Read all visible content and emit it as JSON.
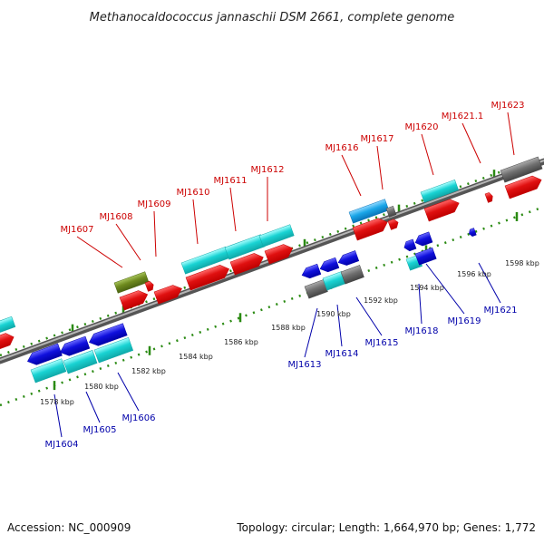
{
  "title": "Methanocaldococcus jannaschii DSM 2661, complete genome",
  "footer": {
    "accession": "Accession: NC_000909",
    "summary": "Topology: circular; Length: 1,664,970 bp; Genes: 1,772"
  },
  "colors": {
    "red": "#e01010",
    "blue": "#1010dd",
    "cyan": "#19d3d3",
    "olive": "#6e8a1e",
    "gray": "#6f6f6f",
    "sky": "#1aa6e8",
    "backbone": "#777777",
    "guide": "#2a8a12"
  },
  "scale_ticks": [
    "1578 kbp",
    "1580 kbp",
    "1582 kbp",
    "1584 kbp",
    "1586 kbp",
    "1588 kbp",
    "1590 kbp",
    "1592 kbp",
    "1594 kbp",
    "1596 kbp",
    "1598 kbp"
  ],
  "labels_top": [
    "MJ1607",
    "MJ1608",
    "MJ1609",
    "MJ1610",
    "MJ1611",
    "MJ1612",
    "MJ1616",
    "MJ1617",
    "MJ1620",
    "MJ1621.1",
    "MJ1623"
  ],
  "labels_bottom": [
    "MJ1604",
    "MJ1605",
    "MJ1606",
    "MJ1613",
    "MJ1614",
    "MJ1615",
    "MJ1618",
    "MJ1619",
    "MJ1621"
  ]
}
